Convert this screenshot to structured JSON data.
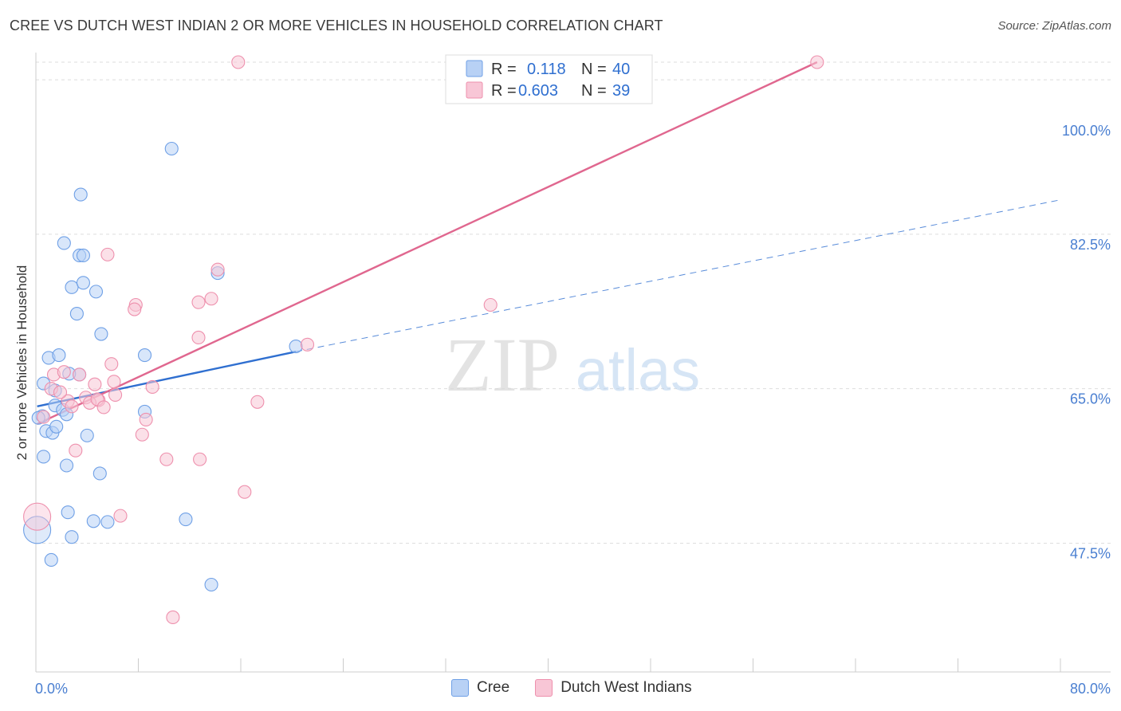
{
  "title": "CREE VS DUTCH WEST INDIAN 2 OR MORE VEHICLES IN HOUSEHOLD CORRELATION CHART",
  "source": "Source: ZipAtlas.com",
  "watermark": {
    "zip": "ZIP",
    "atlas": "atlas"
  },
  "colors": {
    "cree": "#6fa0e6",
    "cree_fill": "#b8d1f5",
    "cree_line": "#2f6fd0",
    "dutch": "#ee90ad",
    "dutch_fill": "#f8c6d6",
    "dutch_line": "#e0678f",
    "axis_label": "#4a7fd1",
    "grid": "#dddddd"
  },
  "legend": {
    "rows": [
      {
        "series": "cree",
        "r_label": "R =",
        "r_value": "0.118",
        "n_label": "N =",
        "n_value": "40"
      },
      {
        "series": "dutch",
        "r_label": "R =",
        "r_value": "0.603",
        "n_label": "N =",
        "n_value": "39"
      }
    ],
    "bottom": [
      {
        "series": "cree",
        "label": "Cree"
      },
      {
        "series": "dutch",
        "label": "Dutch West Indians"
      }
    ]
  },
  "chart_data": {
    "type": "scatter",
    "title": "CREE VS DUTCH WEST INDIAN 2 OR MORE VEHICLES IN HOUSEHOLD CORRELATION CHART",
    "xlabel": "",
    "ylabel": "2 or more Vehicles in Household",
    "xlim": [
      0,
      80
    ],
    "ylim": [
      33,
      102
    ],
    "x_tick_labels": [
      "0.0%",
      "80.0%"
    ],
    "y_ticks": [
      47.5,
      65.0,
      82.5,
      100.0
    ],
    "y_tick_labels": [
      "47.5%",
      "65.0%",
      "82.5%",
      "100.0%"
    ],
    "legend_placement": "top-center",
    "series": [
      {
        "name": "Cree",
        "key": "cree",
        "r": 0.118,
        "n": 40,
        "trend": {
          "x0": 0.1,
          "y0": 63.0,
          "x1": 20.3,
          "y1": 69.2,
          "dash_x1": 80.0,
          "dash_y1": 86.4
        },
        "points": [
          [
            10.6,
            92.2
          ],
          [
            3.5,
            87.0
          ],
          [
            2.2,
            81.5
          ],
          [
            3.4,
            80.1
          ],
          [
            3.7,
            80.1
          ],
          [
            2.8,
            76.5
          ],
          [
            3.7,
            77.0
          ],
          [
            4.7,
            76.0
          ],
          [
            14.2,
            78.1
          ],
          [
            3.2,
            73.5
          ],
          [
            5.1,
            71.2
          ],
          [
            1.0,
            68.5
          ],
          [
            1.8,
            68.8
          ],
          [
            8.5,
            68.8
          ],
          [
            0.6,
            65.6
          ],
          [
            1.5,
            64.8
          ],
          [
            3.4,
            66.6
          ],
          [
            2.6,
            66.7
          ],
          [
            1.5,
            63.1
          ],
          [
            2.1,
            62.6
          ],
          [
            2.4,
            62.1
          ],
          [
            8.5,
            62.4
          ],
          [
            0.5,
            61.9
          ],
          [
            0.8,
            60.2
          ],
          [
            1.3,
            60.0
          ],
          [
            1.6,
            60.7
          ],
          [
            4.0,
            59.7
          ],
          [
            0.6,
            57.3
          ],
          [
            2.4,
            56.3
          ],
          [
            5.0,
            55.4
          ],
          [
            2.5,
            51.0
          ],
          [
            4.5,
            50.0
          ],
          [
            5.6,
            49.9
          ],
          [
            11.7,
            50.2
          ],
          [
            2.8,
            48.2
          ],
          [
            0.1,
            49.0
          ],
          [
            1.2,
            45.6
          ],
          [
            13.7,
            42.8
          ],
          [
            20.3,
            69.8
          ],
          [
            0.2,
            61.7
          ]
        ]
      },
      {
        "name": "Dutch West Indians",
        "key": "dutch",
        "r": 0.603,
        "n": 39,
        "trend": {
          "x0": 0.1,
          "y0": 61.0,
          "x1": 61.0,
          "y1": 102.0
        },
        "points": [
          [
            15.8,
            102.0
          ],
          [
            61.0,
            102.0
          ],
          [
            5.6,
            80.2
          ],
          [
            14.2,
            78.5
          ],
          [
            13.7,
            75.2
          ],
          [
            12.7,
            74.8
          ],
          [
            7.8,
            74.5
          ],
          [
            7.7,
            74.0
          ],
          [
            35.5,
            74.5
          ],
          [
            12.7,
            70.8
          ],
          [
            21.2,
            70.0
          ],
          [
            5.9,
            67.8
          ],
          [
            1.4,
            66.6
          ],
          [
            2.2,
            66.9
          ],
          [
            3.4,
            66.6
          ],
          [
            4.6,
            65.5
          ],
          [
            6.1,
            65.8
          ],
          [
            1.2,
            65.0
          ],
          [
            6.2,
            64.3
          ],
          [
            2.5,
            63.6
          ],
          [
            3.9,
            64.0
          ],
          [
            4.9,
            63.7
          ],
          [
            4.2,
            63.4
          ],
          [
            17.3,
            63.5
          ],
          [
            2.8,
            63.0
          ],
          [
            0.6,
            61.8
          ],
          [
            8.6,
            61.5
          ],
          [
            8.3,
            59.8
          ],
          [
            3.1,
            58.0
          ],
          [
            10.2,
            57.0
          ],
          [
            12.8,
            57.0
          ],
          [
            16.3,
            53.3
          ],
          [
            6.6,
            50.6
          ],
          [
            0.1,
            50.5
          ],
          [
            10.7,
            39.1
          ],
          [
            4.8,
            63.8
          ],
          [
            1.9,
            64.6
          ],
          [
            5.3,
            62.9
          ],
          [
            9.1,
            65.2
          ]
        ]
      }
    ]
  }
}
